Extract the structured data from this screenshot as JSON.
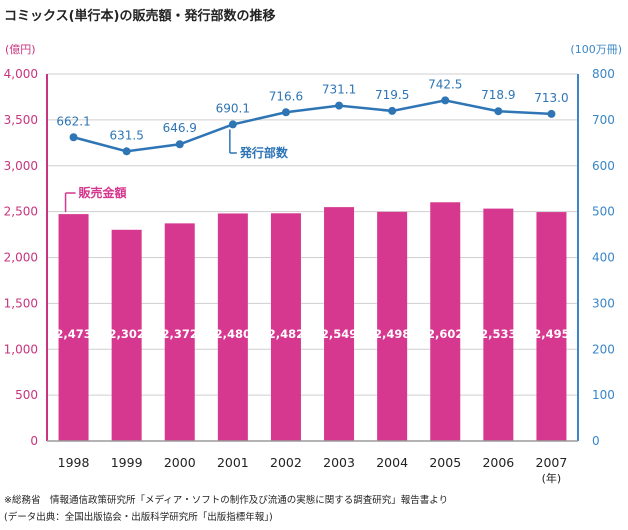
{
  "chart_data": {
    "type": "bar+line",
    "title": "コミックス(単行本)の販売額・発行部数の推移",
    "left_axis": {
      "unit_label": "(億円)",
      "range": [
        0,
        4000
      ],
      "ticks": [
        "0",
        "500",
        "1,000",
        "1,500",
        "2,000",
        "2,500",
        "3,000",
        "3,500",
        "4,000"
      ],
      "tick_values": [
        0,
        500,
        1000,
        1500,
        2000,
        2500,
        3000,
        3500,
        4000
      ]
    },
    "right_axis": {
      "unit_label": "(100万冊)",
      "range": [
        0,
        800
      ],
      "ticks": [
        "0",
        "100",
        "200",
        "300",
        "400",
        "500",
        "600",
        "700",
        "800"
      ],
      "tick_values": [
        0,
        100,
        200,
        300,
        400,
        500,
        600,
        700,
        800
      ]
    },
    "categories": [
      "1998",
      "1999",
      "2000",
      "2001",
      "2002",
      "2003",
      "2004",
      "2005",
      "2006",
      "2007"
    ],
    "x_unit_label": "(年)",
    "series": [
      {
        "name": "販売金額",
        "type": "bar",
        "axis": "left",
        "color": "#d6378f",
        "values": [
          2473,
          2302,
          2372,
          2480,
          2482,
          2549,
          2498,
          2602,
          2533,
          2495
        ],
        "labels": [
          "2,473",
          "2,302",
          "2,372",
          "2,480",
          "2,482",
          "2,549",
          "2,498",
          "2,602",
          "2,533",
          "2,495"
        ]
      },
      {
        "name": "発行部数",
        "type": "line",
        "axis": "right",
        "color": "#2e75b6",
        "values": [
          662.1,
          631.5,
          646.9,
          690.1,
          716.6,
          731.1,
          719.5,
          742.5,
          718.9,
          713.0
        ],
        "labels": [
          "662.1",
          "631.5",
          "646.9",
          "690.1",
          "716.6",
          "731.1",
          "719.5",
          "742.5",
          "718.9",
          "713.0"
        ]
      }
    ],
    "grid": true
  },
  "notes": {
    "line1": "※総務省　情報通信政策研究所「メディア・ソフトの制作及び流通の実態に関する調査研究」報告書より",
    "line2": "(データ出典：全国出版協会・出版科学研究所「出版指標年報」)"
  },
  "colors": {
    "bar": "#d6378f",
    "line": "#2e75b6",
    "left_axis": "#c8347e",
    "right_axis": "#3a86c8",
    "grid": "#cfcfcf"
  }
}
